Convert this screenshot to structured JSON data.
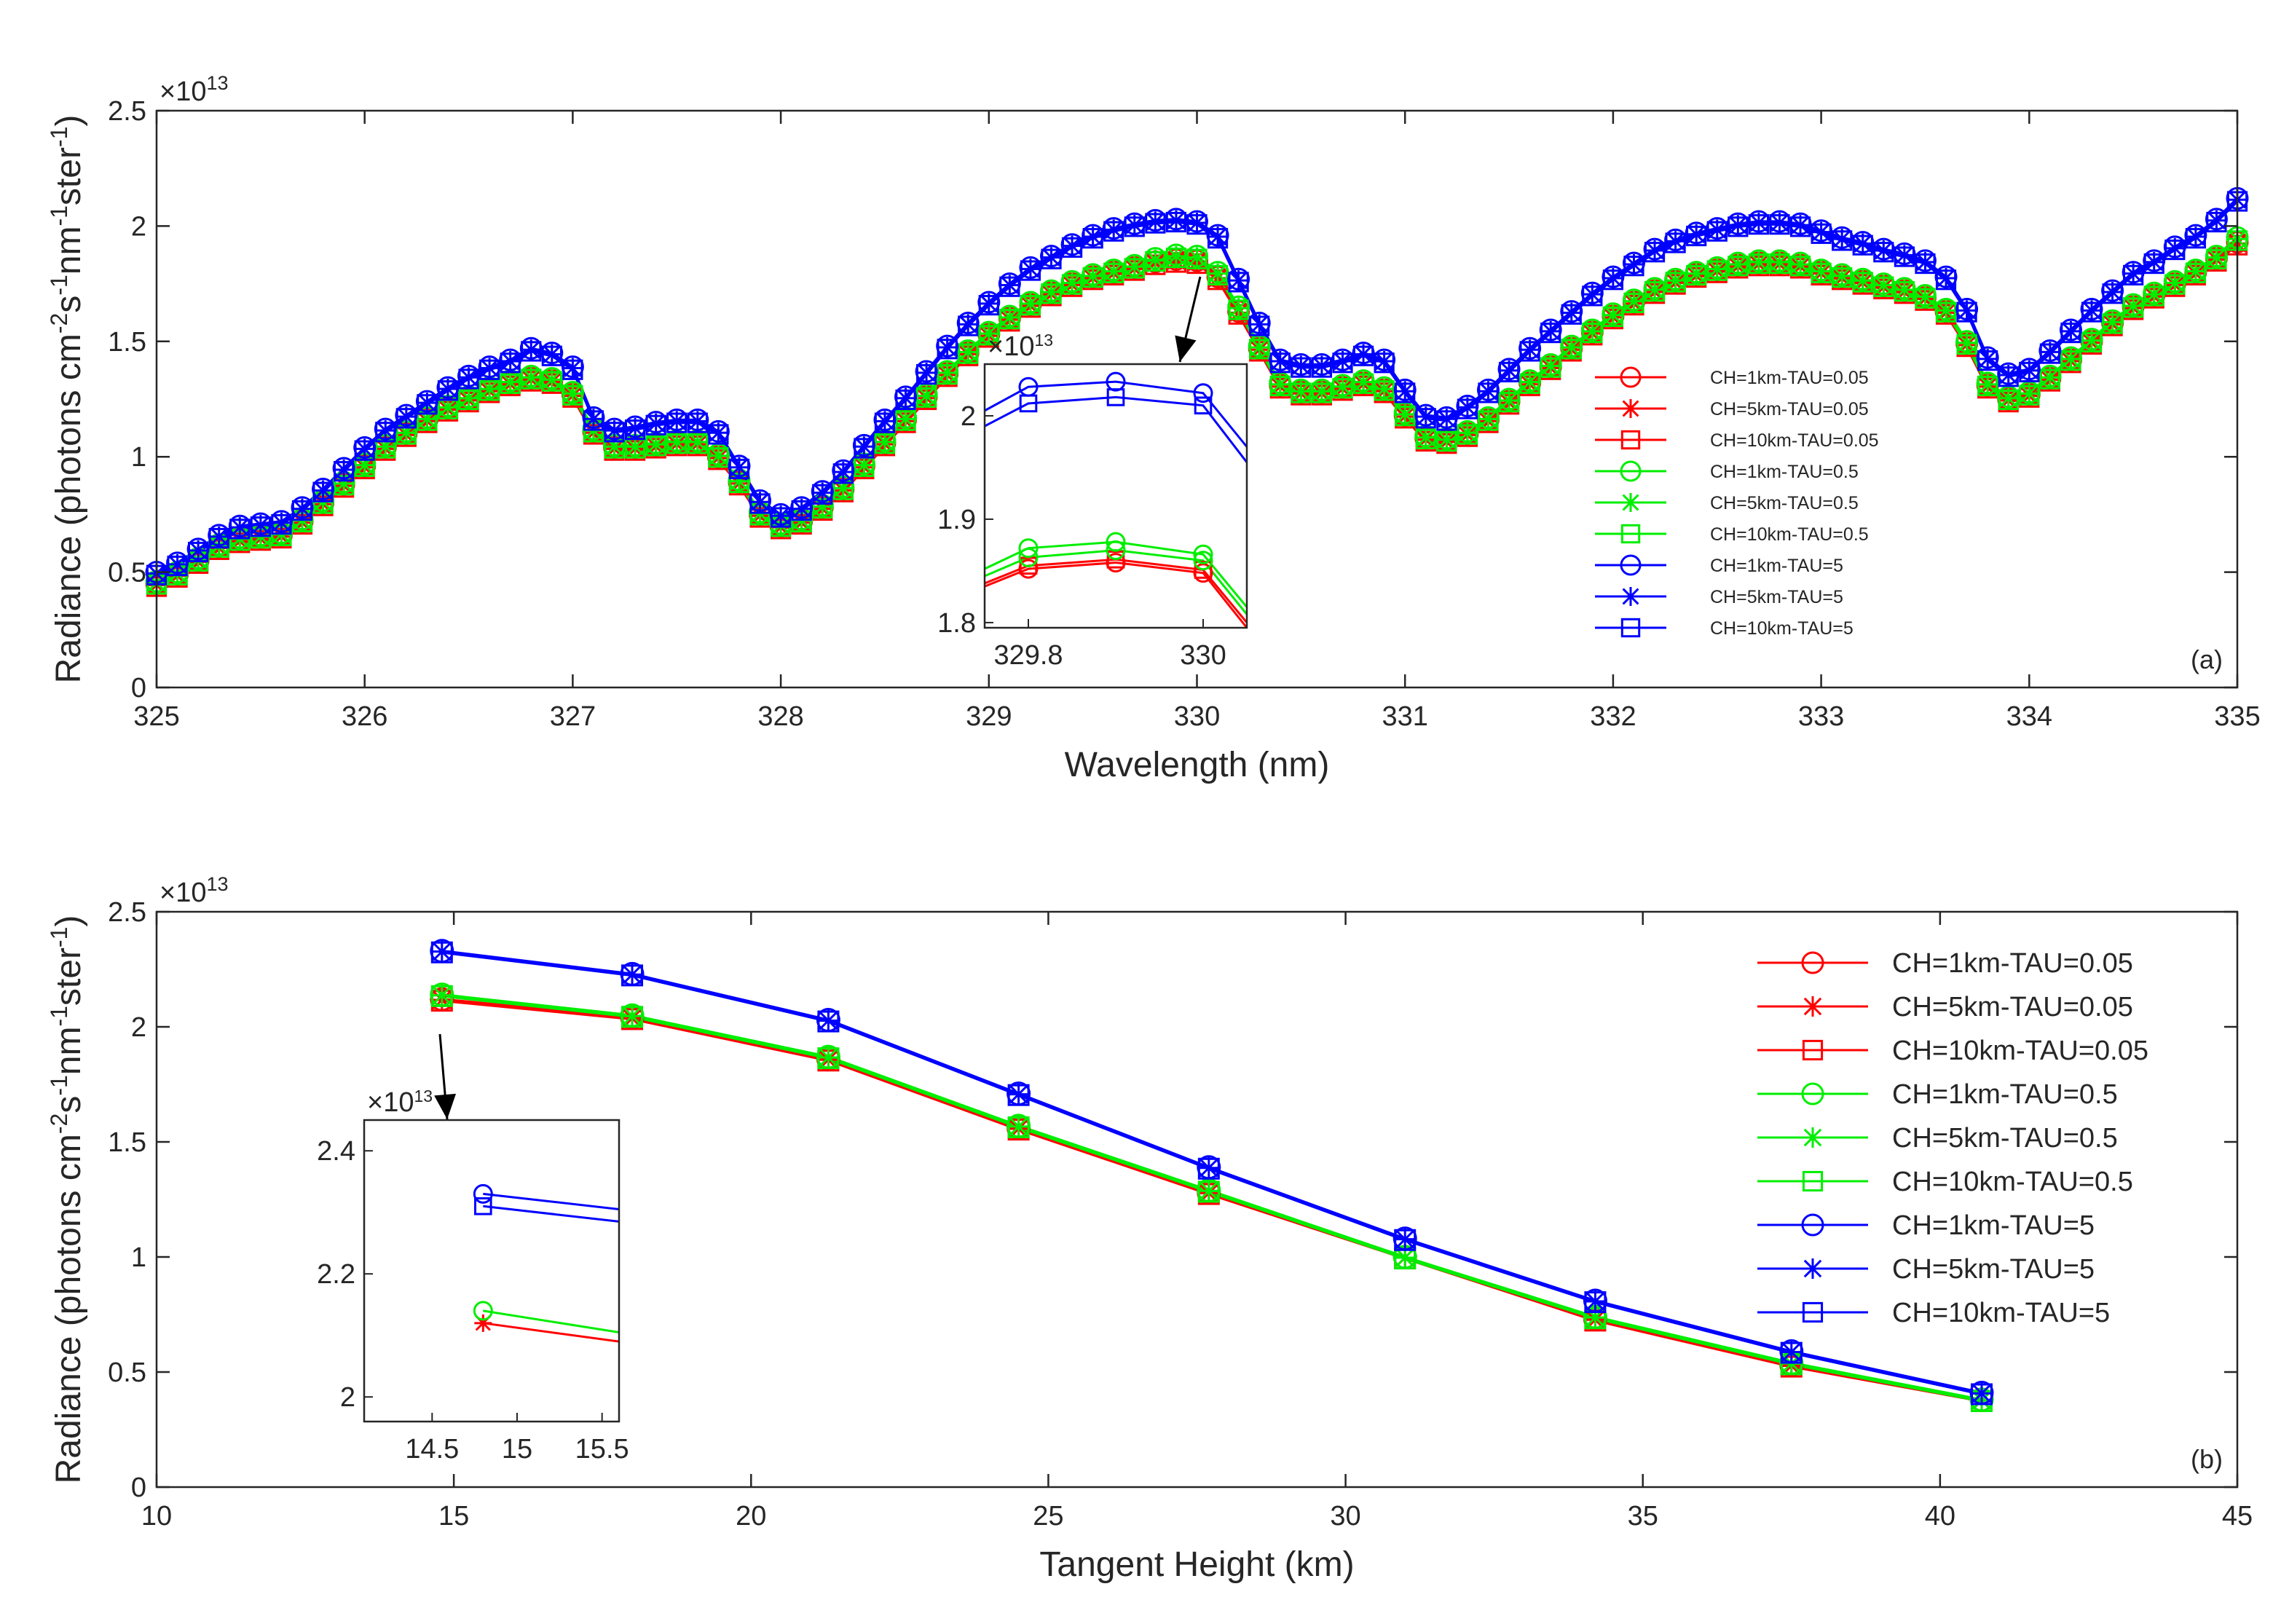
{
  "colors": {
    "red": "#ff0000",
    "green": "#00ee00",
    "blue": "#0000ff",
    "axis": "#262626"
  },
  "series_styles": [
    {
      "name": "CH=1km-TAU=0.05",
      "color": "red",
      "marker": "circle"
    },
    {
      "name": "CH=5km-TAU=0.05",
      "color": "red",
      "marker": "asterisk"
    },
    {
      "name": "CH=10km-TAU=0.05",
      "color": "red",
      "marker": "square"
    },
    {
      "name": "CH=1km-TAU=0.5",
      "color": "green",
      "marker": "circle"
    },
    {
      "name": "CH=5km-TAU=0.5",
      "color": "green",
      "marker": "asterisk"
    },
    {
      "name": "CH=10km-TAU=0.5",
      "color": "green",
      "marker": "square"
    },
    {
      "name": "CH=1km-TAU=5",
      "color": "blue",
      "marker": "circle"
    },
    {
      "name": "CH=5km-TAU=5",
      "color": "blue",
      "marker": "asterisk"
    },
    {
      "name": "CH=10km-TAU=5",
      "color": "blue",
      "marker": "square"
    }
  ],
  "chart_data": [
    {
      "type": "line",
      "panel_label": "(a)",
      "xlabel": "Wavelength (nm)",
      "ylabel": "Radiance (photons cm-2s-1nm-1ster-1)",
      "ylabel_parts": [
        "Radiance (photons cm",
        "-2",
        "s",
        "-1",
        "nm",
        "-1",
        "ster",
        "-1",
        ")"
      ],
      "y_multiplier": "×10",
      "y_multiplier_exp": "13",
      "xlim": [
        325,
        335
      ],
      "ylim": [
        0,
        2.5
      ],
      "xticks": [
        325,
        326,
        327,
        328,
        329,
        330,
        331,
        332,
        333,
        334,
        335
      ],
      "yticks": [
        0,
        0.5,
        1,
        1.5,
        2,
        2.5
      ],
      "ytick_labels": [
        "0",
        "0.5",
        "1",
        "1.5",
        "2",
        "2.5"
      ],
      "legend_position": "right-center",
      "x": [
        325,
        325.1,
        325.2,
        325.3,
        325.4,
        325.5,
        325.6,
        325.7,
        325.8,
        325.9,
        326,
        326.1,
        326.2,
        326.3,
        326.4,
        326.5,
        326.6,
        326.7,
        326.8,
        326.9,
        327,
        327.1,
        327.2,
        327.3,
        327.4,
        327.5,
        327.6,
        327.7,
        327.8,
        327.9,
        328,
        328.1,
        328.2,
        328.3,
        328.4,
        328.5,
        328.6,
        328.7,
        328.8,
        328.9,
        329,
        329.1,
        329.2,
        329.3,
        329.4,
        329.5,
        329.6,
        329.7,
        329.8,
        329.9,
        330,
        330.1,
        330.2,
        330.3,
        330.4,
        330.5,
        330.6,
        330.7,
        330.8,
        330.9,
        331,
        331.1,
        331.2,
        331.3,
        331.4,
        331.5,
        331.6,
        331.7,
        331.8,
        331.9,
        332,
        332.1,
        332.2,
        332.3,
        332.4,
        332.5,
        332.6,
        332.7,
        332.8,
        332.9,
        333,
        333.1,
        333.2,
        333.3,
        333.4,
        333.5,
        333.6,
        333.7,
        333.8,
        333.9,
        334,
        334.1,
        334.2,
        334.3,
        334.4,
        334.5,
        334.6,
        334.7,
        334.8,
        334.9,
        335
      ],
      "series_groups": [
        {
          "group": "TAU=0.05",
          "color": "red",
          "values": [
            0.45,
            0.49,
            0.55,
            0.61,
            0.64,
            0.65,
            0.66,
            0.72,
            0.8,
            0.88,
            0.96,
            1.04,
            1.1,
            1.16,
            1.21,
            1.25,
            1.29,
            1.32,
            1.34,
            1.33,
            1.27,
            1.11,
            1.04,
            1.04,
            1.05,
            1.06,
            1.06,
            1.0,
            0.89,
            0.75,
            0.7,
            0.72,
            0.78,
            0.86,
            0.96,
            1.06,
            1.16,
            1.26,
            1.36,
            1.45,
            1.53,
            1.6,
            1.66,
            1.71,
            1.75,
            1.78,
            1.8,
            1.82,
            1.845,
            1.855,
            1.85,
            1.78,
            1.63,
            1.47,
            1.31,
            1.28,
            1.28,
            1.3,
            1.32,
            1.29,
            1.18,
            1.08,
            1.07,
            1.1,
            1.16,
            1.24,
            1.32,
            1.39,
            1.47,
            1.54,
            1.61,
            1.67,
            1.72,
            1.76,
            1.79,
            1.81,
            1.83,
            1.84,
            1.84,
            1.83,
            1.8,
            1.78,
            1.76,
            1.74,
            1.72,
            1.69,
            1.63,
            1.49,
            1.31,
            1.25,
            1.27,
            1.34,
            1.42,
            1.5,
            1.58,
            1.65,
            1.7,
            1.75,
            1.8,
            1.86,
            1.93
          ]
        },
        {
          "group": "TAU=0.5",
          "color": "green",
          "values": [
            0.46,
            0.5,
            0.56,
            0.62,
            0.65,
            0.66,
            0.67,
            0.73,
            0.81,
            0.89,
            0.97,
            1.05,
            1.11,
            1.17,
            1.22,
            1.26,
            1.3,
            1.33,
            1.35,
            1.34,
            1.28,
            1.12,
            1.05,
            1.05,
            1.06,
            1.07,
            1.07,
            1.01,
            0.9,
            0.76,
            0.71,
            0.73,
            0.79,
            0.87,
            0.97,
            1.07,
            1.17,
            1.27,
            1.37,
            1.46,
            1.54,
            1.61,
            1.67,
            1.72,
            1.76,
            1.79,
            1.81,
            1.83,
            1.86,
            1.875,
            1.87,
            1.8,
            1.65,
            1.48,
            1.32,
            1.29,
            1.29,
            1.31,
            1.33,
            1.3,
            1.19,
            1.09,
            1.08,
            1.11,
            1.17,
            1.25,
            1.33,
            1.4,
            1.48,
            1.55,
            1.62,
            1.68,
            1.73,
            1.77,
            1.8,
            1.82,
            1.84,
            1.85,
            1.85,
            1.84,
            1.81,
            1.79,
            1.77,
            1.75,
            1.73,
            1.7,
            1.64,
            1.5,
            1.32,
            1.26,
            1.28,
            1.35,
            1.43,
            1.51,
            1.59,
            1.66,
            1.71,
            1.76,
            1.81,
            1.87,
            1.95
          ]
        },
        {
          "group": "TAU=5",
          "color": "blue",
          "values": [
            0.5,
            0.54,
            0.6,
            0.66,
            0.7,
            0.71,
            0.72,
            0.78,
            0.86,
            0.95,
            1.04,
            1.12,
            1.18,
            1.24,
            1.3,
            1.35,
            1.39,
            1.42,
            1.47,
            1.45,
            1.39,
            1.17,
            1.12,
            1.13,
            1.15,
            1.16,
            1.16,
            1.11,
            0.96,
            0.81,
            0.75,
            0.78,
            0.85,
            0.94,
            1.05,
            1.16,
            1.26,
            1.37,
            1.48,
            1.58,
            1.67,
            1.75,
            1.82,
            1.87,
            1.92,
            1.96,
            1.99,
            2.01,
            2.025,
            2.03,
            2.02,
            1.96,
            1.77,
            1.58,
            1.42,
            1.4,
            1.4,
            1.42,
            1.45,
            1.42,
            1.29,
            1.18,
            1.17,
            1.22,
            1.29,
            1.38,
            1.47,
            1.55,
            1.63,
            1.71,
            1.78,
            1.84,
            1.9,
            1.94,
            1.97,
            1.99,
            2.01,
            2.02,
            2.02,
            2.01,
            1.98,
            1.95,
            1.93,
            1.9,
            1.88,
            1.85,
            1.78,
            1.64,
            1.43,
            1.36,
            1.38,
            1.46,
            1.55,
            1.64,
            1.72,
            1.8,
            1.85,
            1.91,
            1.96,
            2.03,
            2.12
          ]
        }
      ],
      "inset": {
        "xlim": [
          329.75,
          330.05
        ],
        "ylim": [
          1.795,
          2.05
        ],
        "xticks": [
          329.8,
          330
        ],
        "xtick_labels": [
          "329.8",
          "330"
        ],
        "yticks": [
          1.8,
          1.9,
          2
        ],
        "ytick_labels": [
          "1.8",
          "1.9",
          "2"
        ],
        "y_multiplier": "×10",
        "y_multiplier_exp": "13",
        "x": [
          329.75,
          329.8,
          329.9,
          330,
          330.05
        ],
        "lines": [
          {
            "color": "red",
            "values": [
              1.835,
              1.852,
              1.858,
              1.848,
              1.795
            ]
          },
          {
            "color": "red",
            "values": [
              1.838,
              1.855,
              1.861,
              1.851,
              1.8
            ]
          },
          {
            "color": "green",
            "values": [
              1.845,
              1.863,
              1.87,
              1.86,
              1.808
            ]
          },
          {
            "color": "green",
            "values": [
              1.852,
              1.872,
              1.878,
              1.866,
              1.815
            ]
          },
          {
            "color": "blue",
            "values": [
              1.99,
              2.012,
              2.018,
              2.01,
              1.955
            ]
          },
          {
            "color": "blue",
            "values": [
              2.005,
              2.028,
              2.033,
              2.022,
              1.97
            ]
          }
        ]
      }
    },
    {
      "type": "line",
      "panel_label": "(b)",
      "xlabel": "Tangent Height (km)",
      "ylabel": "Radiance (photons cm-2s-1nm-1ster-1)",
      "ylabel_parts": [
        "Radiance (photons cm",
        "-2",
        "s",
        "-1",
        "nm",
        "-1",
        "ster",
        "-1",
        ")"
      ],
      "y_multiplier": "×10",
      "y_multiplier_exp": "13",
      "xlim": [
        10,
        45
      ],
      "ylim": [
        0,
        2.5
      ],
      "xticks": [
        10,
        15,
        20,
        25,
        30,
        35,
        40,
        45
      ],
      "yticks": [
        0,
        0.5,
        1,
        1.5,
        2,
        2.5
      ],
      "ytick_labels": [
        "0",
        "0.5",
        "1",
        "1.5",
        "2",
        "2.5"
      ],
      "legend_position": "top-right",
      "x": [
        14.8,
        18.0,
        21.3,
        24.5,
        27.7,
        31.0,
        34.2,
        37.5,
        40.7
      ],
      "series_groups": [
        {
          "group": "TAU=0.05",
          "color": "red",
          "values": [
            2.12,
            2.04,
            1.86,
            1.56,
            1.28,
            1.0,
            0.73,
            0.53,
            0.38
          ]
        },
        {
          "group": "TAU=0.5",
          "color": "green",
          "values": [
            2.14,
            2.05,
            1.87,
            1.57,
            1.29,
            1.0,
            0.74,
            0.54,
            0.38
          ]
        },
        {
          "group": "TAU=5",
          "color": "blue",
          "values": [
            2.33,
            2.23,
            2.03,
            1.71,
            1.39,
            1.08,
            0.81,
            0.59,
            0.41
          ]
        }
      ],
      "inset": {
        "xlim": [
          14.1,
          15.6
        ],
        "ylim": [
          1.96,
          2.45
        ],
        "xticks": [
          14.5,
          15,
          15.5
        ],
        "xtick_labels": [
          "14.5",
          "15",
          "15.5"
        ],
        "yticks": [
          2,
          2.2,
          2.4
        ],
        "ytick_labels": [
          "2",
          "2.2",
          "2.4"
        ],
        "y_multiplier": "×10",
        "y_multiplier_exp": "13",
        "x": [
          14.8,
          15.6
        ],
        "lines": [
          {
            "color": "red",
            "values": [
              2.12,
              2.09
            ]
          },
          {
            "color": "green",
            "values": [
              2.14,
              2.105
            ]
          },
          {
            "color": "blue",
            "values": [
              2.31,
              2.285
            ]
          },
          {
            "color": "blue",
            "values": [
              2.33,
              2.305
            ]
          }
        ]
      }
    }
  ]
}
